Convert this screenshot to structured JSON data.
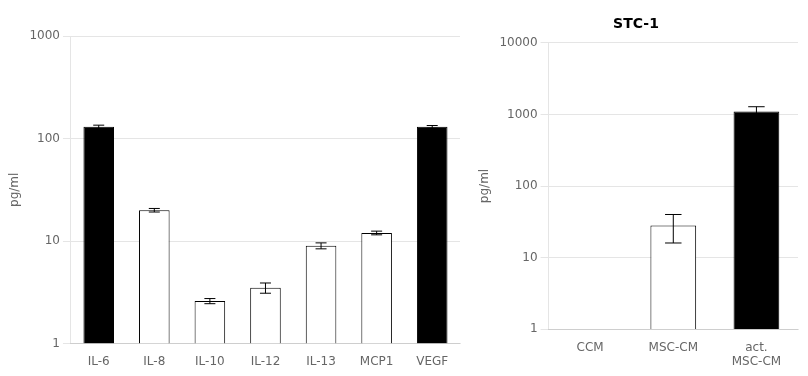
{
  "chart_data": [
    {
      "type": "bar",
      "categories": [
        "IL-6",
        "IL-8",
        "IL-10",
        "IL-12",
        "IL-13",
        "MCP1",
        "VEGF"
      ],
      "values": [
        130,
        20,
        2.6,
        3.5,
        9.0,
        12.0,
        130
      ],
      "errors": [
        5,
        0.8,
        0.15,
        0.4,
        0.6,
        0.5,
        4
      ],
      "colors": [
        "black",
        "white",
        "white",
        "white",
        "white",
        "white",
        "black"
      ],
      "ylabel": "pg/ml",
      "ylim": [
        1,
        1000
      ],
      "yticks": [
        1,
        10,
        100,
        1000
      ],
      "log": "y",
      "grid": true
    },
    {
      "type": "bar",
      "title": "STC-1",
      "categories": [
        "CCM",
        "MSC-CM",
        "act.\nMSC-CM"
      ],
      "values": [
        1.0,
        28,
        1100
      ],
      "errors": [
        0.0,
        12,
        180
      ],
      "colors": [
        "white",
        "white",
        "black"
      ],
      "ylabel": "pg/ml",
      "ylim": [
        1,
        10000
      ],
      "yticks": [
        1,
        10,
        100,
        1000,
        10000
      ],
      "log": "y",
      "grid": true
    }
  ]
}
